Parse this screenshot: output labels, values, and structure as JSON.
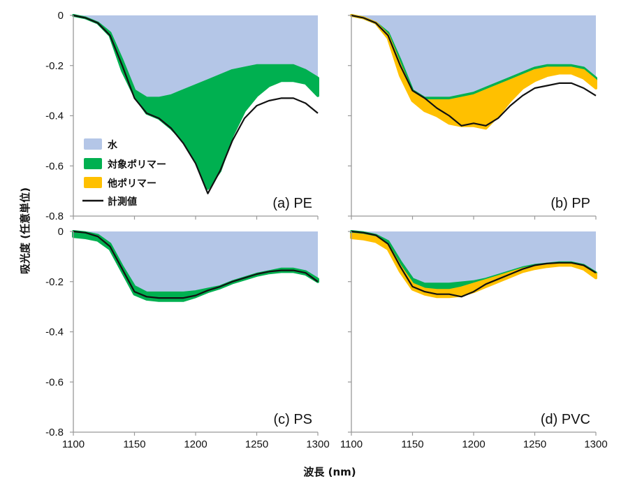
{
  "chart_data": {
    "type": "area",
    "xlabel": "波長 (nm)",
    "ylabel": "吸光度 (任意単位)",
    "xlim": [
      1100,
      1300
    ],
    "ylim": [
      -0.8,
      0
    ],
    "xticks": [
      "1100",
      "1150",
      "1200",
      "1250",
      "1300"
    ],
    "yticks": [
      "0",
      "-0.2",
      "-0.4",
      "-0.6",
      "-0.8"
    ],
    "colors": {
      "water": "#b4c6e7",
      "target": "#00b050",
      "other": "#ffc000",
      "measured": "#111111"
    },
    "legend": {
      "placement": "panel-a-left",
      "entries": [
        {
          "key": "water",
          "label": "水"
        },
        {
          "key": "target",
          "label": "対象ポリマー"
        },
        {
          "key": "other",
          "label": "他ポリマー"
        },
        {
          "key": "measured",
          "label": "計測値"
        }
      ]
    },
    "panels": [
      {
        "id": "a",
        "label": "(a) PE",
        "x": [
          1100,
          1110,
          1120,
          1130,
          1140,
          1150,
          1160,
          1170,
          1180,
          1190,
          1200,
          1210,
          1220,
          1230,
          1240,
          1250,
          1260,
          1270,
          1280,
          1290,
          1300
        ],
        "water": [
          0,
          -0.01,
          -0.03,
          -0.07,
          -0.18,
          -0.3,
          -0.33,
          -0.33,
          -0.32,
          -0.3,
          -0.28,
          -0.26,
          -0.24,
          -0.22,
          -0.21,
          -0.2,
          -0.2,
          -0.2,
          -0.2,
          -0.22,
          -0.25
        ],
        "target_bottom": [
          0,
          -0.01,
          -0.03,
          -0.08,
          -0.22,
          -0.32,
          -0.39,
          -0.41,
          -0.45,
          -0.5,
          -0.58,
          -0.69,
          -0.62,
          -0.48,
          -0.38,
          -0.32,
          -0.28,
          -0.26,
          -0.26,
          -0.27,
          -0.32
        ],
        "measured": [
          0,
          -0.01,
          -0.03,
          -0.08,
          -0.2,
          -0.33,
          -0.39,
          -0.41,
          -0.45,
          -0.51,
          -0.59,
          -0.71,
          -0.62,
          -0.5,
          -0.41,
          -0.36,
          -0.34,
          -0.33,
          -0.33,
          -0.35,
          -0.39
        ]
      },
      {
        "id": "b",
        "label": "(b) PP",
        "x": [
          1100,
          1110,
          1120,
          1130,
          1140,
          1150,
          1160,
          1170,
          1180,
          1190,
          1200,
          1210,
          1220,
          1230,
          1240,
          1250,
          1260,
          1270,
          1280,
          1290,
          1300
        ],
        "water": [
          0,
          -0.01,
          -0.03,
          -0.07,
          -0.18,
          -0.3,
          -0.33,
          -0.33,
          -0.33,
          -0.32,
          -0.31,
          -0.29,
          -0.27,
          -0.25,
          -0.23,
          -0.21,
          -0.2,
          -0.2,
          -0.2,
          -0.21,
          -0.25
        ],
        "target_bottom": [
          0,
          -0.01,
          -0.03,
          -0.08,
          -0.2,
          -0.31,
          -0.34,
          -0.34,
          -0.34,
          -0.33,
          -0.32,
          -0.3,
          -0.28,
          -0.26,
          -0.24,
          -0.22,
          -0.21,
          -0.21,
          -0.21,
          -0.22,
          -0.26
        ],
        "other_bottom": [
          0,
          -0.01,
          -0.03,
          -0.09,
          -0.24,
          -0.34,
          -0.38,
          -0.4,
          -0.43,
          -0.44,
          -0.44,
          -0.45,
          -0.4,
          -0.34,
          -0.29,
          -0.26,
          -0.24,
          -0.23,
          -0.23,
          -0.25,
          -0.29
        ],
        "measured": [
          0,
          -0.01,
          -0.03,
          -0.08,
          -0.2,
          -0.3,
          -0.33,
          -0.37,
          -0.4,
          -0.44,
          -0.43,
          -0.44,
          -0.41,
          -0.36,
          -0.32,
          -0.29,
          -0.28,
          -0.27,
          -0.27,
          -0.29,
          -0.32
        ]
      },
      {
        "id": "c",
        "label": "(c) PS",
        "x": [
          1100,
          1110,
          1120,
          1130,
          1140,
          1150,
          1160,
          1170,
          1180,
          1190,
          1200,
          1210,
          1220,
          1230,
          1240,
          1250,
          1260,
          1270,
          1280,
          1290,
          1300
        ],
        "water": [
          0,
          -0.005,
          -0.015,
          -0.05,
          -0.14,
          -0.22,
          -0.245,
          -0.245,
          -0.245,
          -0.245,
          -0.24,
          -0.23,
          -0.22,
          -0.2,
          -0.185,
          -0.17,
          -0.16,
          -0.15,
          -0.15,
          -0.16,
          -0.19
        ],
        "target_bottom": [
          -0.02,
          -0.025,
          -0.035,
          -0.07,
          -0.16,
          -0.25,
          -0.27,
          -0.275,
          -0.275,
          -0.275,
          -0.26,
          -0.24,
          -0.225,
          -0.205,
          -0.19,
          -0.175,
          -0.165,
          -0.16,
          -0.16,
          -0.17,
          -0.2
        ],
        "measured": [
          0,
          -0.005,
          -0.02,
          -0.06,
          -0.15,
          -0.24,
          -0.26,
          -0.265,
          -0.265,
          -0.265,
          -0.255,
          -0.235,
          -0.22,
          -0.2,
          -0.185,
          -0.17,
          -0.16,
          -0.155,
          -0.155,
          -0.165,
          -0.2
        ]
      },
      {
        "id": "d",
        "label": "(d) PVC",
        "x": [
          1100,
          1110,
          1120,
          1130,
          1140,
          1150,
          1160,
          1170,
          1180,
          1190,
          1200,
          1210,
          1220,
          1230,
          1240,
          1250,
          1260,
          1270,
          1280,
          1290,
          1300
        ],
        "water": [
          0,
          -0.005,
          -0.015,
          -0.04,
          -0.12,
          -0.19,
          -0.21,
          -0.21,
          -0.21,
          -0.205,
          -0.2,
          -0.19,
          -0.175,
          -0.16,
          -0.145,
          -0.135,
          -0.13,
          -0.125,
          -0.125,
          -0.135,
          -0.165
        ],
        "target_bottom": [
          -0.01,
          -0.015,
          -0.025,
          -0.055,
          -0.14,
          -0.21,
          -0.23,
          -0.235,
          -0.235,
          -0.225,
          -0.21,
          -0.195,
          -0.18,
          -0.165,
          -0.15,
          -0.14,
          -0.135,
          -0.13,
          -0.13,
          -0.14,
          -0.17
        ],
        "other_bottom": [
          -0.025,
          -0.03,
          -0.04,
          -0.07,
          -0.16,
          -0.23,
          -0.25,
          -0.26,
          -0.26,
          -0.255,
          -0.24,
          -0.22,
          -0.2,
          -0.18,
          -0.16,
          -0.148,
          -0.14,
          -0.135,
          -0.135,
          -0.15,
          -0.185
        ],
        "measured": [
          0,
          -0.005,
          -0.015,
          -0.05,
          -0.14,
          -0.22,
          -0.24,
          -0.25,
          -0.25,
          -0.26,
          -0.24,
          -0.21,
          -0.19,
          -0.17,
          -0.15,
          -0.135,
          -0.128,
          -0.125,
          -0.125,
          -0.135,
          -0.165
        ]
      }
    ]
  }
}
